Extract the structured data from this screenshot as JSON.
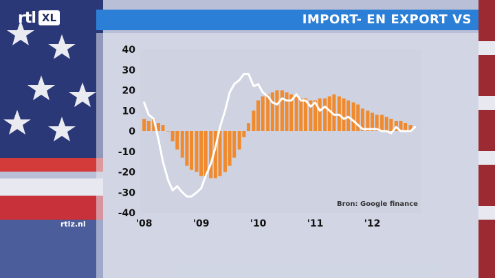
{
  "brand": {
    "rtl": "rtl",
    "xl": "XL"
  },
  "title": "IMPORT- EN EXPORT VS",
  "source": "Bron: Google finance",
  "site": "rtlz.nl",
  "colors": {
    "bar": "#f08a2c",
    "line": "#ffffff",
    "title_bar": "#2c7fd6"
  },
  "chart_data": {
    "type": "bar",
    "title": "IMPORT- EN EXPORT VS",
    "ylim": [
      -40,
      40
    ],
    "y_ticks": [
      "40",
      "30",
      "20",
      "10",
      "0",
      "-10",
      "-20",
      "-30",
      "-40"
    ],
    "x_ticks": [
      {
        "label": "'08",
        "t": 2008.0
      },
      {
        "label": "'09",
        "t": 2009.0
      },
      {
        "label": "'10",
        "t": 2010.0
      },
      {
        "label": "'11",
        "t": 2011.0
      },
      {
        "label": "'12",
        "t": 2012.0
      }
    ],
    "x_range": [
      2007.92,
      2012.85
    ],
    "series": [
      {
        "type": "bar",
        "x": [
          2008.0,
          2008.08,
          2008.17,
          2008.25,
          2008.33,
          2008.42,
          2008.5,
          2008.58,
          2008.67,
          2008.75,
          2008.83,
          2008.92,
          2009.0,
          2009.08,
          2009.17,
          2009.25,
          2009.33,
          2009.42,
          2009.5,
          2009.58,
          2009.67,
          2009.75,
          2009.83,
          2009.92,
          2010.0,
          2010.08,
          2010.17,
          2010.25,
          2010.33,
          2010.42,
          2010.5,
          2010.58,
          2010.67,
          2010.75,
          2010.83,
          2010.92,
          2011.0,
          2011.08,
          2011.17,
          2011.25,
          2011.33,
          2011.42,
          2011.5,
          2011.58,
          2011.67,
          2011.75,
          2011.83,
          2011.92,
          2012.0,
          2012.08,
          2012.17,
          2012.25,
          2012.33,
          2012.42,
          2012.5,
          2012.58,
          2012.67
        ],
        "values": [
          6,
          5,
          6,
          4,
          3,
          0,
          -5,
          -9,
          -13,
          -17,
          -19,
          -20,
          -22,
          -22,
          -23,
          -23,
          -22,
          -20,
          -17,
          -13,
          -9,
          -3,
          4,
          10,
          15,
          17,
          18,
          19,
          20,
          20,
          19,
          18,
          17,
          16,
          16,
          15,
          15,
          16,
          16,
          17,
          18,
          17,
          16,
          15,
          14,
          13,
          11,
          10,
          9,
          8,
          8,
          7,
          6,
          5,
          5,
          4,
          3
        ]
      },
      {
        "type": "line",
        "x": [
          2008.0,
          2008.08,
          2008.17,
          2008.25,
          2008.33,
          2008.42,
          2008.5,
          2008.58,
          2008.67,
          2008.75,
          2008.83,
          2008.92,
          2009.0,
          2009.08,
          2009.17,
          2009.25,
          2009.33,
          2009.42,
          2009.5,
          2009.58,
          2009.67,
          2009.75,
          2009.83,
          2009.92,
          2010.0,
          2010.08,
          2010.17,
          2010.25,
          2010.33,
          2010.42,
          2010.5,
          2010.58,
          2010.67,
          2010.75,
          2010.83,
          2010.92,
          2011.0,
          2011.08,
          2011.17,
          2011.25,
          2011.33,
          2011.42,
          2011.5,
          2011.58,
          2011.67,
          2011.75,
          2011.83,
          2011.92,
          2012.0,
          2012.08,
          2012.17,
          2012.25,
          2012.33,
          2012.42,
          2012.5,
          2012.58,
          2012.67,
          2012.75
        ],
        "values": [
          14,
          8,
          6,
          -4,
          -15,
          -24,
          -29,
          -27,
          -30,
          -32,
          -32,
          -30,
          -28,
          -22,
          -16,
          -8,
          2,
          10,
          19,
          23,
          25,
          28,
          28,
          22,
          23,
          19,
          17,
          14,
          13,
          16,
          15,
          15,
          18,
          15,
          15,
          12,
          14,
          10,
          12,
          10,
          8,
          8,
          6,
          7,
          5,
          3,
          1,
          1,
          1,
          1,
          0,
          0,
          -1,
          2,
          0,
          0,
          0,
          2
        ]
      }
    ]
  }
}
